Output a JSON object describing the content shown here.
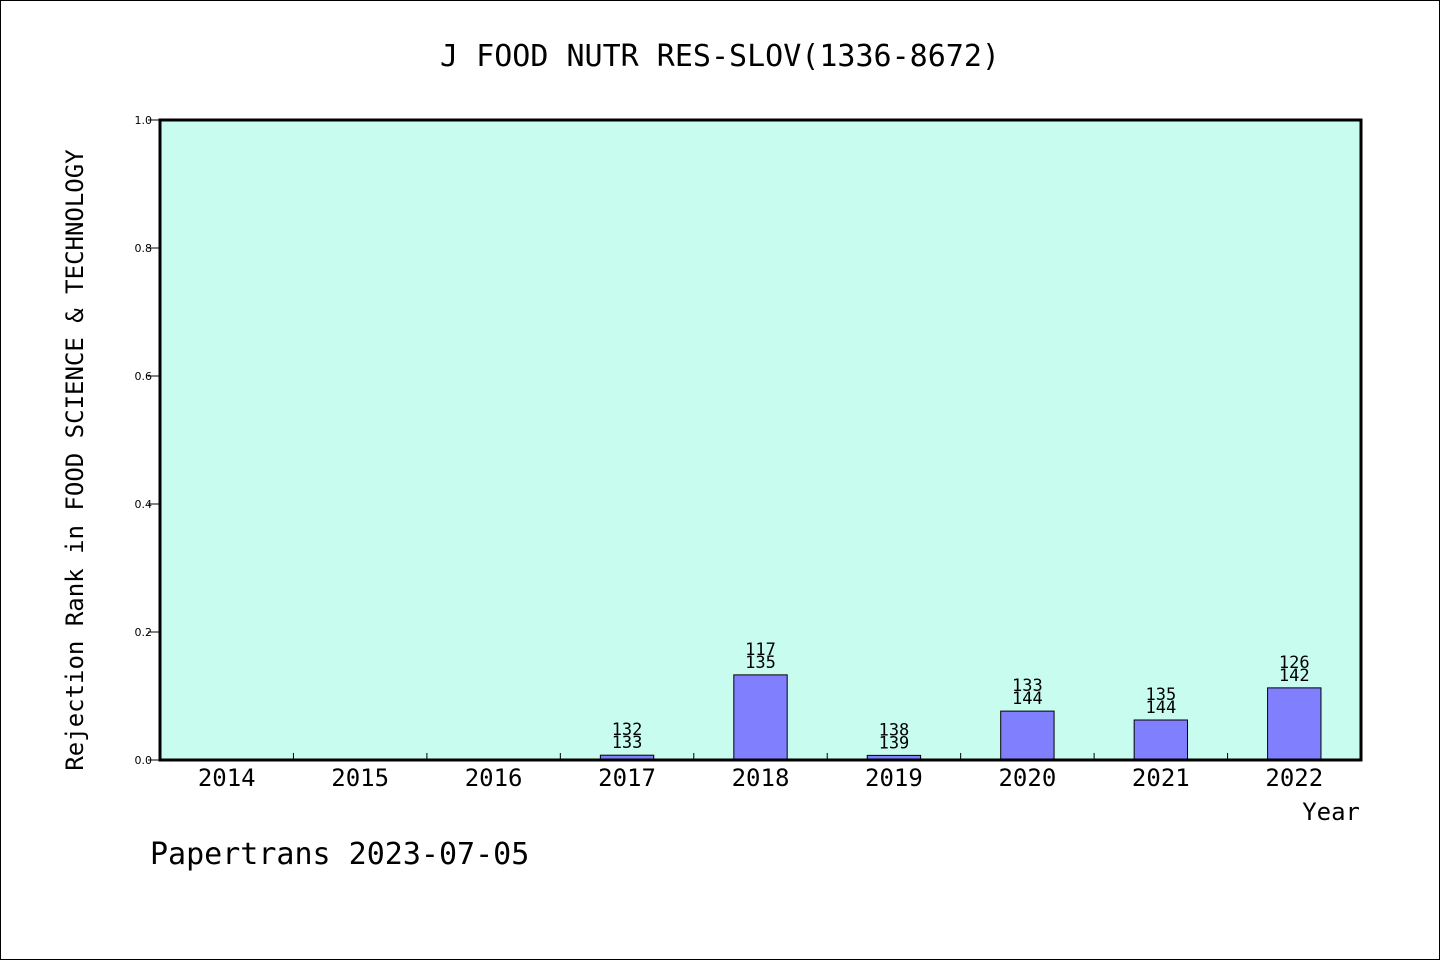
{
  "chart_data": {
    "type": "bar",
    "title": "J FOOD NUTR RES-SLOV(1336-8672)",
    "xlabel": "Year",
    "ylabel": "Rejection Rank in FOOD SCIENCE & TECHNOLOGY",
    "ylim": [
      0,
      1.0
    ],
    "yticks": [
      "0.0",
      "0.2",
      "0.4",
      "0.6",
      "0.8",
      "1.0"
    ],
    "grid": false,
    "categories": [
      "2014",
      "2015",
      "2016",
      "2017",
      "2018",
      "2019",
      "2020",
      "2021",
      "2022"
    ],
    "values": [
      0,
      0,
      0,
      0.0075,
      0.133,
      0.0072,
      0.0764,
      0.0625,
      0.1127
    ],
    "labels": [
      [
        "",
        ""
      ],
      [
        "",
        ""
      ],
      [
        "",
        ""
      ],
      [
        "132",
        "133"
      ],
      [
        "117",
        "135"
      ],
      [
        "138",
        "139"
      ],
      [
        "133",
        "144"
      ],
      [
        "135",
        "144"
      ],
      [
        "126",
        "142"
      ]
    ],
    "colors": {
      "plot_background": "#c8fcee",
      "bar_fill": "#8080ff",
      "bar_stroke": "#000000"
    }
  },
  "footer": {
    "credit": "Papertrans 2023-07-05"
  }
}
